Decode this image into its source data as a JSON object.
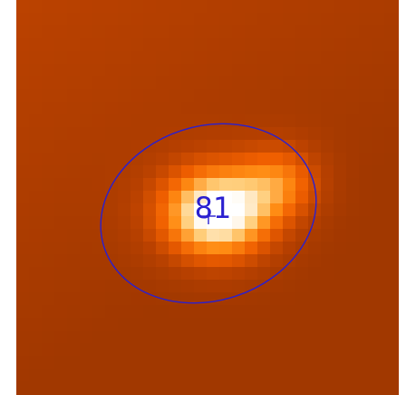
{
  "source": {
    "label": "81"
  }
}
